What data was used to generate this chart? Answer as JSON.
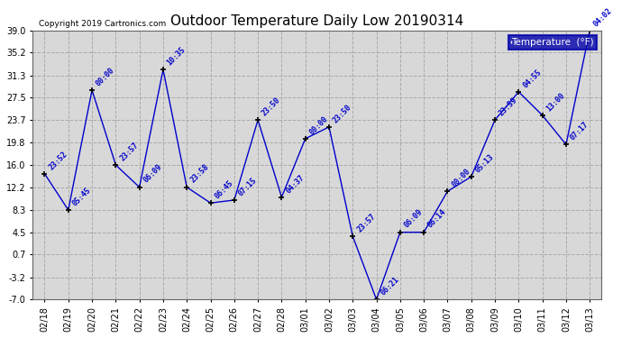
{
  "title": "Outdoor Temperature Daily Low 20190314",
  "copyright": "Copyright 2019 Cartronics.com",
  "legend_label": "Temperature  (°F)",
  "dates": [
    "02/18",
    "02/19",
    "02/20",
    "02/21",
    "02/22",
    "02/23",
    "02/24",
    "02/25",
    "02/26",
    "02/27",
    "02/28",
    "03/01",
    "03/02",
    "03/03",
    "03/04",
    "03/05",
    "03/06",
    "03/07",
    "03/08",
    "03/09",
    "03/10",
    "03/11",
    "03/12",
    "03/13"
  ],
  "values": [
    14.5,
    8.3,
    28.8,
    16.0,
    12.2,
    32.3,
    12.2,
    9.5,
    10.0,
    23.7,
    10.5,
    20.5,
    22.5,
    3.8,
    -7.0,
    4.5,
    4.5,
    11.5,
    14.0,
    23.7,
    28.5,
    24.5,
    19.5,
    39.0
  ],
  "time_labels": [
    "23:52",
    "05:45",
    "00:00",
    "23:57",
    "06:09",
    "10:35",
    "23:58",
    "06:45",
    "07:15",
    "23:50",
    "04:37",
    "00:00",
    "23:50",
    "23:57",
    "06:21",
    "06:09",
    "06:14",
    "00:00",
    "05:13",
    "23:59",
    "04:55",
    "13:00",
    "07:17",
    "04:02"
  ],
  "ylim": [
    -7.0,
    39.0
  ],
  "yticks": [
    39.0,
    35.2,
    31.3,
    27.5,
    23.7,
    19.8,
    16.0,
    12.2,
    8.3,
    4.5,
    0.7,
    -3.2,
    -7.0
  ],
  "line_color": "#0000cc",
  "marker_color": "#000000",
  "bg_color": "#ffffff",
  "plot_bg_color": "#d8d8d8",
  "grid_color": "#aaaaaa",
  "title_fontsize": 11,
  "tick_fontsize": 7,
  "annotation_fontsize": 6
}
